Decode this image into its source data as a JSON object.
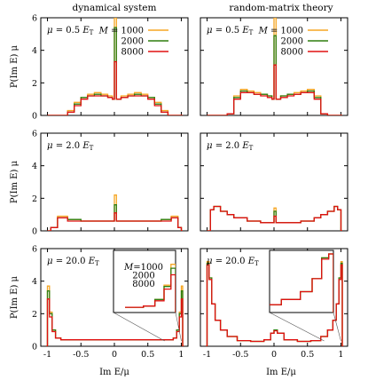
{
  "figure": {
    "column_titles": [
      "dynamical system",
      "random-matrix theory"
    ],
    "y_label": "P(Im E) μ",
    "x_label": "Im E/μ"
  },
  "colors": {
    "M1000": "#f5a623",
    "M2000": "#2e7d0f",
    "M8000": "#e01010"
  },
  "chart_data": [
    {
      "type": "histogram",
      "row": 0,
      "col": 0,
      "annotation": {
        "mu_sym": "μ",
        "mu_value": "= 0.5",
        "unit": "E",
        "unit_sub": "T"
      },
      "xlim": [
        -1.1,
        1.1
      ],
      "ylim": [
        0,
        6
      ],
      "xticks": [
        -1,
        -0.5,
        0,
        0.5,
        1
      ],
      "yticks": [
        0,
        2,
        4,
        6
      ],
      "legend": {
        "title": "M",
        "entries": [
          {
            "label": "= 1000"
          },
          {
            "label": "2000"
          },
          {
            "label": "8000"
          }
        ],
        "placement": "top-right"
      },
      "series": [
        {
          "name": "1000",
          "color_key": "M1000",
          "x": [
            -1.0,
            -0.8,
            -0.7,
            -0.6,
            -0.5,
            -0.4,
            -0.3,
            -0.2,
            -0.1,
            -0.03,
            0.0,
            0.03,
            0.1,
            0.2,
            0.3,
            0.4,
            0.5,
            0.6,
            0.7,
            0.8,
            1.0
          ],
          "y": [
            0,
            0,
            0.3,
            0.8,
            1.1,
            1.3,
            1.4,
            1.3,
            1.2,
            1.0,
            6.0,
            1.0,
            1.2,
            1.3,
            1.4,
            1.3,
            1.1,
            0.8,
            0.3,
            0,
            0
          ]
        },
        {
          "name": "2000",
          "color_key": "M2000",
          "x": [
            -1.0,
            -0.8,
            -0.7,
            -0.6,
            -0.5,
            -0.4,
            -0.3,
            -0.2,
            -0.1,
            -0.03,
            0.0,
            0.03,
            0.1,
            0.2,
            0.3,
            0.4,
            0.5,
            0.6,
            0.7,
            0.8,
            1.0
          ],
          "y": [
            0,
            0,
            0.2,
            0.7,
            1.1,
            1.2,
            1.3,
            1.2,
            1.1,
            1.0,
            5.4,
            1.0,
            1.1,
            1.2,
            1.3,
            1.2,
            1.1,
            0.7,
            0.2,
            0,
            0
          ]
        },
        {
          "name": "8000",
          "color_key": "M8000",
          "x": [
            -1.0,
            -0.8,
            -0.7,
            -0.6,
            -0.5,
            -0.4,
            -0.3,
            -0.2,
            -0.1,
            -0.03,
            0.0,
            0.03,
            0.1,
            0.2,
            0.3,
            0.4,
            0.5,
            0.6,
            0.7,
            0.8,
            1.0
          ],
          "y": [
            0,
            0,
            0.2,
            0.6,
            1.0,
            1.2,
            1.2,
            1.2,
            1.1,
            1.0,
            3.3,
            1.0,
            1.1,
            1.2,
            1.2,
            1.2,
            1.0,
            0.6,
            0.2,
            0,
            0
          ]
        }
      ]
    },
    {
      "type": "histogram",
      "row": 0,
      "col": 1,
      "annotation": {
        "mu_sym": "μ",
        "mu_value": "= 0.5",
        "unit": "E",
        "unit_sub": "T"
      },
      "xlim": [
        -1.1,
        1.1
      ],
      "ylim": [
        0,
        6
      ],
      "xticks": [
        -1,
        -0.5,
        0,
        0.5,
        1
      ],
      "yticks": [
        0,
        2,
        4,
        6
      ],
      "legend": {
        "title": "M",
        "entries": [
          {
            "label": "= 1000"
          },
          {
            "label": "2000"
          },
          {
            "label": "8000"
          }
        ],
        "placement": "top-right"
      },
      "series": [
        {
          "name": "1000",
          "color_key": "M1000",
          "x": [
            -1.0,
            -0.8,
            -0.7,
            -0.6,
            -0.5,
            -0.4,
            -0.3,
            -0.2,
            -0.1,
            -0.03,
            0.0,
            0.03,
            0.1,
            0.2,
            0.3,
            0.4,
            0.5,
            0.6,
            0.7,
            0.8,
            1.0
          ],
          "y": [
            0,
            0,
            0.1,
            1.2,
            1.6,
            1.5,
            1.4,
            1.3,
            1.2,
            1.0,
            6.0,
            1.0,
            1.2,
            1.3,
            1.4,
            1.5,
            1.6,
            1.2,
            0.1,
            0,
            0
          ]
        },
        {
          "name": "2000",
          "color_key": "M2000",
          "x": [
            -1.0,
            -0.8,
            -0.7,
            -0.6,
            -0.5,
            -0.4,
            -0.3,
            -0.2,
            -0.1,
            -0.03,
            0.0,
            0.03,
            0.1,
            0.2,
            0.3,
            0.4,
            0.5,
            0.6,
            0.7,
            0.8,
            1.0
          ],
          "y": [
            0,
            0,
            0.1,
            1.1,
            1.5,
            1.4,
            1.3,
            1.3,
            1.2,
            1.0,
            4.9,
            1.0,
            1.2,
            1.3,
            1.3,
            1.4,
            1.5,
            1.1,
            0.1,
            0,
            0
          ]
        },
        {
          "name": "8000",
          "color_key": "M8000",
          "x": [
            -1.0,
            -0.8,
            -0.7,
            -0.6,
            -0.5,
            -0.4,
            -0.3,
            -0.2,
            -0.1,
            -0.03,
            0.0,
            0.03,
            0.1,
            0.2,
            0.3,
            0.4,
            0.5,
            0.6,
            0.7,
            0.8,
            1.0
          ],
          "y": [
            0,
            0,
            0.1,
            1.0,
            1.4,
            1.4,
            1.3,
            1.2,
            1.1,
            1.0,
            3.1,
            1.0,
            1.1,
            1.2,
            1.3,
            1.4,
            1.4,
            1.0,
            0.1,
            0,
            0
          ]
        }
      ]
    },
    {
      "type": "histogram",
      "row": 1,
      "col": 0,
      "annotation": {
        "mu_sym": "μ",
        "mu_value": "= 2.0",
        "unit": "E",
        "unit_sub": "T"
      },
      "xlim": [
        -1.1,
        1.1
      ],
      "ylim": [
        0,
        6
      ],
      "xticks": [
        -1,
        -0.5,
        0,
        0.5,
        1
      ],
      "yticks": [
        0,
        2,
        4,
        6
      ],
      "series": [
        {
          "name": "1000",
          "color_key": "M1000",
          "x": [
            -1.0,
            -0.95,
            -0.85,
            -0.7,
            -0.5,
            -0.3,
            -0.1,
            -0.03,
            0.0,
            0.03,
            0.1,
            0.3,
            0.5,
            0.7,
            0.85,
            0.95,
            1.0
          ],
          "y": [
            0,
            0.2,
            0.9,
            0.7,
            0.6,
            0.6,
            0.6,
            0.6,
            2.2,
            0.6,
            0.6,
            0.6,
            0.6,
            0.7,
            0.9,
            0.2,
            0
          ]
        },
        {
          "name": "2000",
          "color_key": "M2000",
          "x": [
            -1.0,
            -0.95,
            -0.85,
            -0.7,
            -0.5,
            -0.3,
            -0.1,
            -0.03,
            0.0,
            0.03,
            0.1,
            0.3,
            0.5,
            0.7,
            0.85,
            0.95,
            1.0
          ],
          "y": [
            0,
            0.2,
            0.8,
            0.7,
            0.6,
            0.6,
            0.6,
            0.6,
            1.6,
            0.6,
            0.6,
            0.6,
            0.6,
            0.7,
            0.8,
            0.2,
            0
          ]
        },
        {
          "name": "8000",
          "color_key": "M8000",
          "x": [
            -1.0,
            -0.95,
            -0.85,
            -0.7,
            -0.5,
            -0.3,
            -0.1,
            -0.03,
            0.0,
            0.03,
            0.1,
            0.3,
            0.5,
            0.7,
            0.85,
            0.95,
            1.0
          ],
          "y": [
            0,
            0.2,
            0.8,
            0.6,
            0.6,
            0.6,
            0.6,
            0.6,
            1.1,
            0.6,
            0.6,
            0.6,
            0.6,
            0.6,
            0.8,
            0.2,
            0
          ]
        }
      ]
    },
    {
      "type": "histogram",
      "row": 1,
      "col": 1,
      "annotation": {
        "mu_sym": "μ",
        "mu_value": "= 2.0",
        "unit": "E",
        "unit_sub": "T"
      },
      "xlim": [
        -1.1,
        1.1
      ],
      "ylim": [
        0,
        6
      ],
      "xticks": [
        -1,
        -0.5,
        0,
        0.5,
        1
      ],
      "yticks": [
        0,
        2,
        4,
        6
      ],
      "series": [
        {
          "name": "1000",
          "color_key": "M1000",
          "x": [
            -1.0,
            -0.95,
            -0.9,
            -0.8,
            -0.7,
            -0.6,
            -0.4,
            -0.2,
            -0.03,
            0.0,
            0.03,
            0.2,
            0.4,
            0.6,
            0.7,
            0.8,
            0.9,
            0.95,
            1.0
          ],
          "y": [
            0,
            1.3,
            1.5,
            1.2,
            1.0,
            0.8,
            0.6,
            0.5,
            0.5,
            1.4,
            0.5,
            0.5,
            0.6,
            0.8,
            1.0,
            1.2,
            1.5,
            1.3,
            0
          ]
        },
        {
          "name": "2000",
          "color_key": "M2000",
          "x": [
            -1.0,
            -0.95,
            -0.9,
            -0.8,
            -0.7,
            -0.6,
            -0.4,
            -0.2,
            -0.03,
            0.0,
            0.03,
            0.2,
            0.4,
            0.6,
            0.7,
            0.8,
            0.9,
            0.95,
            1.0
          ],
          "y": [
            0,
            1.3,
            1.5,
            1.2,
            1.0,
            0.8,
            0.6,
            0.5,
            0.5,
            1.2,
            0.5,
            0.5,
            0.6,
            0.8,
            1.0,
            1.2,
            1.5,
            1.3,
            0
          ]
        },
        {
          "name": "8000",
          "color_key": "M8000",
          "x": [
            -1.0,
            -0.95,
            -0.9,
            -0.8,
            -0.7,
            -0.6,
            -0.4,
            -0.2,
            -0.03,
            0.0,
            0.03,
            0.2,
            0.4,
            0.6,
            0.7,
            0.8,
            0.9,
            0.95,
            1.0
          ],
          "y": [
            0,
            1.3,
            1.5,
            1.2,
            1.0,
            0.8,
            0.6,
            0.5,
            0.5,
            0.9,
            0.5,
            0.5,
            0.6,
            0.8,
            1.0,
            1.2,
            1.5,
            1.3,
            0
          ]
        }
      ]
    },
    {
      "type": "histogram",
      "row": 2,
      "col": 0,
      "annotation": {
        "mu_sym": "μ",
        "mu_value": "= 20.0",
        "unit": "E",
        "unit_sub": "T"
      },
      "xlim": [
        -1.1,
        1.1
      ],
      "ylim": [
        0,
        6
      ],
      "xticks": [
        -1,
        -0.5,
        0,
        0.5,
        1
      ],
      "yticks": [
        0,
        2,
        4,
        6
      ],
      "inset": {
        "legend": {
          "title": "M",
          "entries": [
            {
              "label": "=1000"
            },
            {
              "label": "2000"
            },
            {
              "label": "8000"
            }
          ]
        }
      },
      "series": [
        {
          "name": "1000",
          "color_key": "M1000",
          "x": [
            -1.02,
            -1.0,
            -0.97,
            -0.93,
            -0.88,
            -0.8,
            -0.5,
            -0.2,
            0.0,
            0.2,
            0.5,
            0.8,
            0.88,
            0.93,
            0.97,
            1.0,
            1.02
          ],
          "y": [
            0,
            3.7,
            2.1,
            1.0,
            0.5,
            0.4,
            0.4,
            0.4,
            0.4,
            0.4,
            0.4,
            0.4,
            0.5,
            1.0,
            2.1,
            3.7,
            0
          ]
        },
        {
          "name": "2000",
          "color_key": "M2000",
          "x": [
            -1.02,
            -1.0,
            -0.97,
            -0.93,
            -0.88,
            -0.8,
            -0.5,
            -0.2,
            0.0,
            0.2,
            0.5,
            0.8,
            0.88,
            0.93,
            0.97,
            1.0,
            1.02
          ],
          "y": [
            0,
            3.4,
            2.0,
            1.0,
            0.5,
            0.4,
            0.4,
            0.4,
            0.4,
            0.4,
            0.4,
            0.4,
            0.5,
            1.0,
            2.0,
            3.4,
            0
          ]
        },
        {
          "name": "8000",
          "color_key": "M8000",
          "x": [
            -1.02,
            -1.0,
            -0.97,
            -0.93,
            -0.88,
            -0.8,
            -0.5,
            -0.2,
            0.0,
            0.2,
            0.5,
            0.8,
            0.88,
            0.93,
            0.97,
            1.0,
            1.02
          ],
          "y": [
            0,
            2.9,
            1.8,
            0.9,
            0.5,
            0.4,
            0.4,
            0.4,
            0.4,
            0.4,
            0.4,
            0.4,
            0.5,
            0.9,
            1.8,
            2.9,
            0
          ]
        }
      ]
    },
    {
      "type": "histogram",
      "row": 2,
      "col": 1,
      "annotation": {
        "mu_sym": "μ",
        "mu_value": "= 20.0",
        "unit": "E",
        "unit_sub": "T"
      },
      "xlim": [
        -1.1,
        1.1
      ],
      "ylim": [
        0,
        6
      ],
      "xticks": [
        -1,
        -0.5,
        0,
        0.5,
        1
      ],
      "yticks": [
        0,
        2,
        4,
        6
      ],
      "inset": {},
      "series": [
        {
          "name": "1000",
          "color_key": "M1000",
          "x": [
            -1.02,
            -1.0,
            -0.97,
            -0.93,
            -0.88,
            -0.8,
            -0.7,
            -0.55,
            -0.35,
            -0.15,
            -0.05,
            0.0,
            0.05,
            0.15,
            0.35,
            0.55,
            0.7,
            0.8,
            0.88,
            0.93,
            0.97,
            1.0,
            1.02
          ],
          "y": [
            0,
            5.2,
            4.2,
            2.6,
            1.6,
            1.0,
            0.6,
            0.35,
            0.3,
            0.4,
            0.8,
            1.0,
            0.8,
            0.4,
            0.3,
            0.35,
            0.6,
            1.0,
            1.6,
            2.6,
            4.2,
            5.2,
            0
          ]
        },
        {
          "name": "2000",
          "color_key": "M2000",
          "x": [
            -1.02,
            -1.0,
            -0.97,
            -0.93,
            -0.88,
            -0.8,
            -0.7,
            -0.55,
            -0.35,
            -0.15,
            -0.05,
            0.0,
            0.05,
            0.15,
            0.35,
            0.55,
            0.7,
            0.8,
            0.88,
            0.93,
            0.97,
            1.0,
            1.02
          ],
          "y": [
            0,
            5.1,
            4.2,
            2.6,
            1.6,
            1.0,
            0.6,
            0.35,
            0.3,
            0.4,
            0.8,
            1.0,
            0.8,
            0.4,
            0.3,
            0.35,
            0.6,
            1.0,
            1.6,
            2.6,
            4.2,
            5.1,
            0
          ]
        },
        {
          "name": "8000",
          "color_key": "M8000",
          "x": [
            -1.02,
            -1.0,
            -0.97,
            -0.93,
            -0.88,
            -0.8,
            -0.7,
            -0.55,
            -0.35,
            -0.15,
            -0.05,
            0.0,
            0.05,
            0.15,
            0.35,
            0.55,
            0.7,
            0.8,
            0.88,
            0.93,
            0.97,
            1.0,
            1.02
          ],
          "y": [
            0,
            5.0,
            4.1,
            2.6,
            1.6,
            1.0,
            0.6,
            0.35,
            0.3,
            0.4,
            0.8,
            0.95,
            0.8,
            0.4,
            0.3,
            0.35,
            0.6,
            1.0,
            1.6,
            2.6,
            4.1,
            5.0,
            0
          ]
        }
      ]
    }
  ]
}
